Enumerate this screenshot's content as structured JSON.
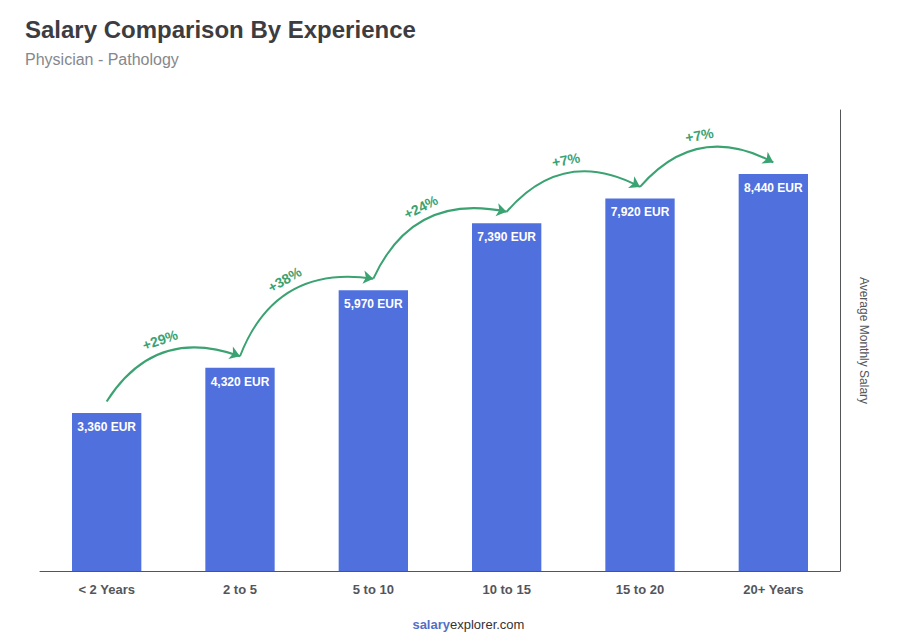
{
  "chart_data": {
    "type": "bar",
    "title": "Salary Comparison By Experience",
    "subtitle": "Physician - Pathology",
    "ylabel": "Average Monthly Salary",
    "categories": [
      "< 2 Years",
      "2 to 5",
      "5 to 10",
      "10 to 15",
      "15 to 20",
      "20+ Years"
    ],
    "values": [
      3360,
      4320,
      5970,
      7390,
      7920,
      8440
    ],
    "value_labels": [
      "3,360 EUR",
      "4,320 EUR",
      "5,970 EUR",
      "7,390 EUR",
      "7,920 EUR",
      "8,440 EUR"
    ],
    "data_labels": true,
    "ylim": [
      0,
      9800
    ],
    "tick_labels": "x",
    "grid": false,
    "annotations": [
      {
        "text": "+29%",
        "between": [
          "< 2 Years",
          "2 to 5"
        ]
      },
      {
        "text": "+38%",
        "between": [
          "2 to 5",
          "5 to 10"
        ]
      },
      {
        "text": "+24%",
        "between": [
          "5 to 10",
          "10 to 15"
        ]
      },
      {
        "text": "+7%",
        "between": [
          "10 to 15",
          "15 to 20"
        ]
      },
      {
        "text": "+7%",
        "between": [
          "15 to 20",
          "20+ Years"
        ]
      },
      {
        "text": "salary"
      },
      {
        "text": "explorer.com"
      }
    ]
  }
}
